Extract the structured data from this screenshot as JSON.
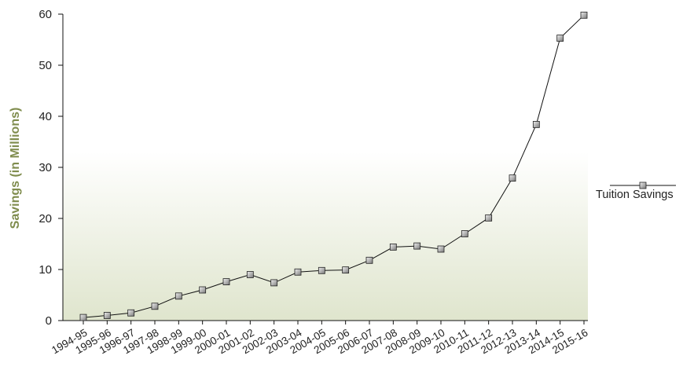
{
  "chart_data": {
    "type": "line",
    "title": "",
    "xlabel": "",
    "ylabel": "Savings (in Millions)",
    "ylim": [
      0,
      60
    ],
    "yticks": [
      0,
      10,
      20,
      30,
      40,
      50,
      60
    ],
    "grid": false,
    "legend_position": "right",
    "categories": [
      "1994-95",
      "1995-96",
      "1996-97",
      "1997-98",
      "1998-99",
      "1999-00",
      "2000-01",
      "2001-02",
      "2002-03",
      "2003-04",
      "2004-05",
      "2005-06",
      "2006-07",
      "2007-08",
      "2008-09",
      "2009-10",
      "2010-11",
      "2011-12",
      "2012-13",
      "2013-14",
      "2014-15",
      "2015-16"
    ],
    "series": [
      {
        "name": "Tuition Savings",
        "values": [
          0.6,
          1.0,
          1.5,
          2.8,
          4.8,
          6.0,
          7.6,
          9.0,
          7.4,
          9.5,
          9.8,
          9.9,
          11.8,
          14.4,
          14.6,
          14.0,
          17.0,
          20.1,
          27.9,
          38.4,
          55.3,
          59.8
        ]
      }
    ]
  },
  "colors": {
    "ylabel": "#7f8c4d",
    "background_top": "#ffffff",
    "background_bottom": "#dfe5cd",
    "line": "#111111",
    "marker_light": "#f0f0f0",
    "marker_dark": "#7a7a7a"
  }
}
